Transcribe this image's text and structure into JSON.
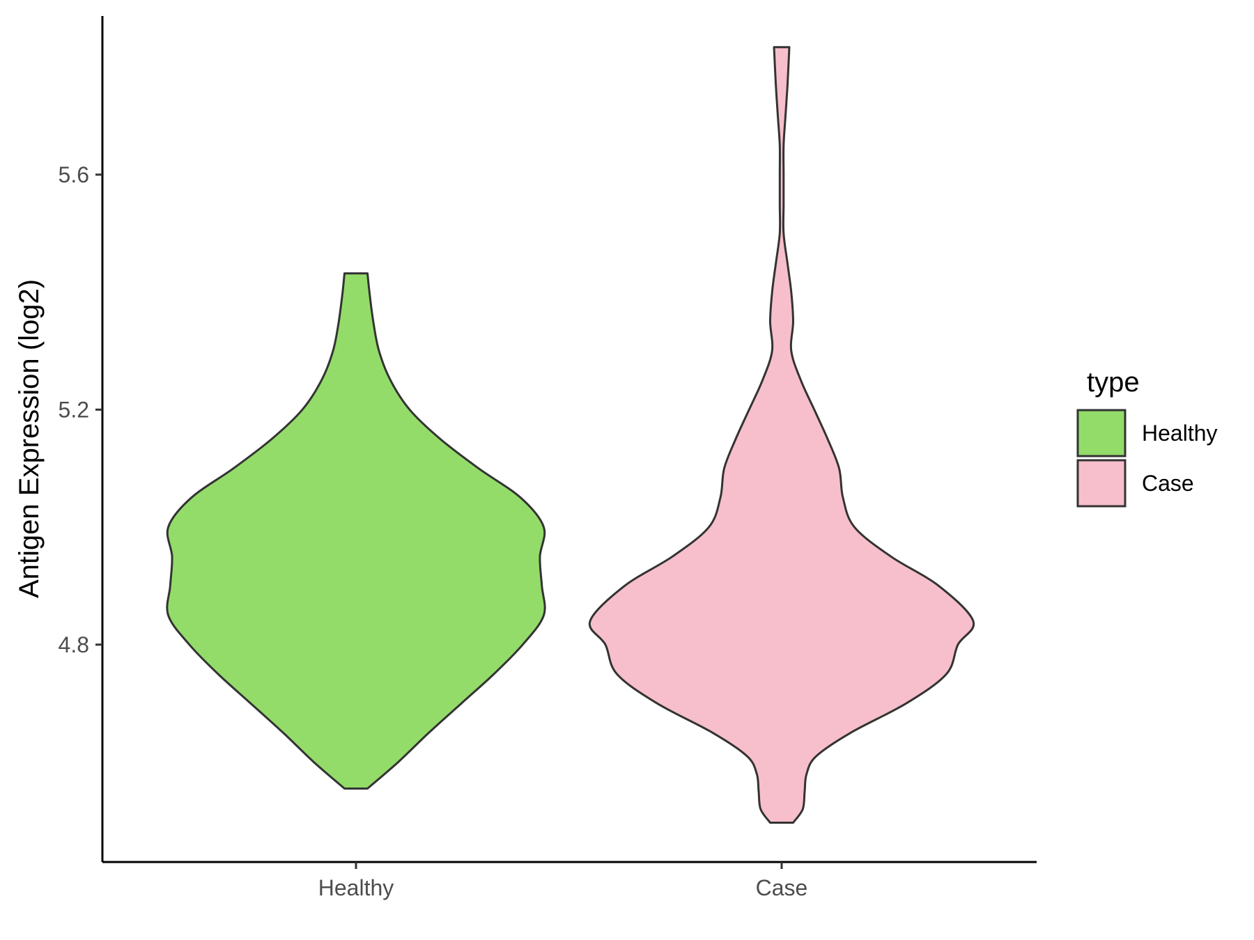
{
  "chart_data": {
    "type": "violin",
    "title": "",
    "xlabel": "",
    "ylabel": "Antigen Expression (log2)",
    "categories": [
      "Healthy",
      "Case"
    ],
    "ylim": [
      4.43,
      5.87
    ],
    "yticks": [
      4.8,
      5.2,
      5.6
    ],
    "ytick_labels": [
      "4.8",
      "5.2",
      "5.6"
    ],
    "grid": false,
    "legend": {
      "title": "type",
      "position": "right",
      "entries": [
        {
          "label": "Healthy",
          "color": "#93dc6a"
        },
        {
          "label": "Case",
          "color": "#f7bfcb"
        }
      ]
    },
    "series": [
      {
        "category": "Healthy",
        "fill": "#93dc6a",
        "range": [
          4.555,
          5.432
        ],
        "density": [
          [
            4.555,
            0.06
          ],
          [
            4.6,
            0.22
          ],
          [
            4.65,
            0.38
          ],
          [
            4.7,
            0.55
          ],
          [
            4.75,
            0.72
          ],
          [
            4.8,
            0.87
          ],
          [
            4.85,
            0.98
          ],
          [
            4.9,
            0.97
          ],
          [
            4.95,
            0.96
          ],
          [
            5.0,
            0.98
          ],
          [
            5.05,
            0.86
          ],
          [
            5.1,
            0.64
          ],
          [
            5.15,
            0.44
          ],
          [
            5.2,
            0.28
          ],
          [
            5.25,
            0.18
          ],
          [
            5.3,
            0.12
          ],
          [
            5.35,
            0.09
          ],
          [
            5.4,
            0.07
          ],
          [
            5.432,
            0.06
          ]
        ]
      },
      {
        "category": "Case",
        "fill": "#f7bfcb",
        "range": [
          4.497,
          5.817
        ],
        "density": [
          [
            4.497,
            0.06
          ],
          [
            4.52,
            0.11
          ],
          [
            4.55,
            0.12
          ],
          [
            4.58,
            0.13
          ],
          [
            4.61,
            0.18
          ],
          [
            4.65,
            0.36
          ],
          [
            4.7,
            0.65
          ],
          [
            4.75,
            0.86
          ],
          [
            4.8,
            0.92
          ],
          [
            4.84,
            1.0
          ],
          [
            4.9,
            0.82
          ],
          [
            4.95,
            0.57
          ],
          [
            5.0,
            0.38
          ],
          [
            5.05,
            0.32
          ],
          [
            5.1,
            0.3
          ],
          [
            5.15,
            0.24
          ],
          [
            5.2,
            0.17
          ],
          [
            5.25,
            0.1
          ],
          [
            5.3,
            0.05
          ],
          [
            5.35,
            0.06
          ],
          [
            5.4,
            0.05
          ],
          [
            5.45,
            0.03
          ],
          [
            5.5,
            0.01
          ],
          [
            5.55,
            0.01
          ],
          [
            5.6,
            0.01
          ],
          [
            5.65,
            0.01
          ],
          [
            5.7,
            0.02
          ],
          [
            5.75,
            0.03
          ],
          [
            5.817,
            0.04
          ]
        ]
      }
    ]
  }
}
